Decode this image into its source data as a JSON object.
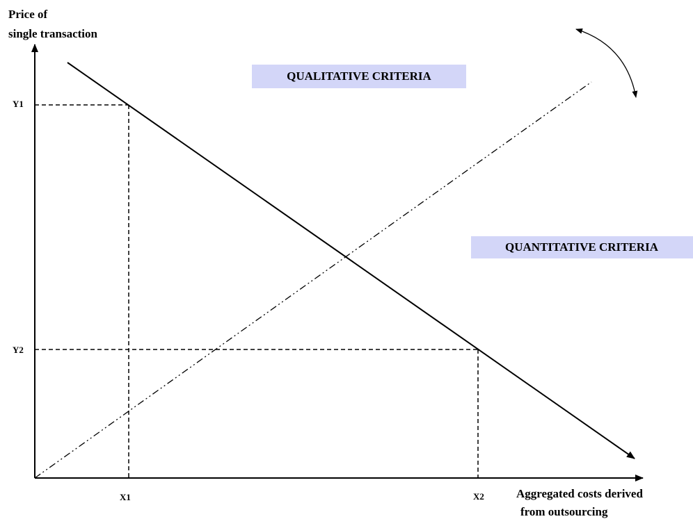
{
  "y_axis": {
    "label_lines": [
      "Price of",
      "single transaction"
    ],
    "ticks": [
      "Y1",
      "Y2"
    ]
  },
  "x_axis": {
    "label_lines": [
      "Aggregated costs derived",
      "from outsourcing"
    ],
    "ticks": [
      "X1",
      "X2"
    ]
  },
  "regions": [
    "QUALITATIVE CRITERIA",
    "QUANTITATIVE CRITERIA"
  ]
}
